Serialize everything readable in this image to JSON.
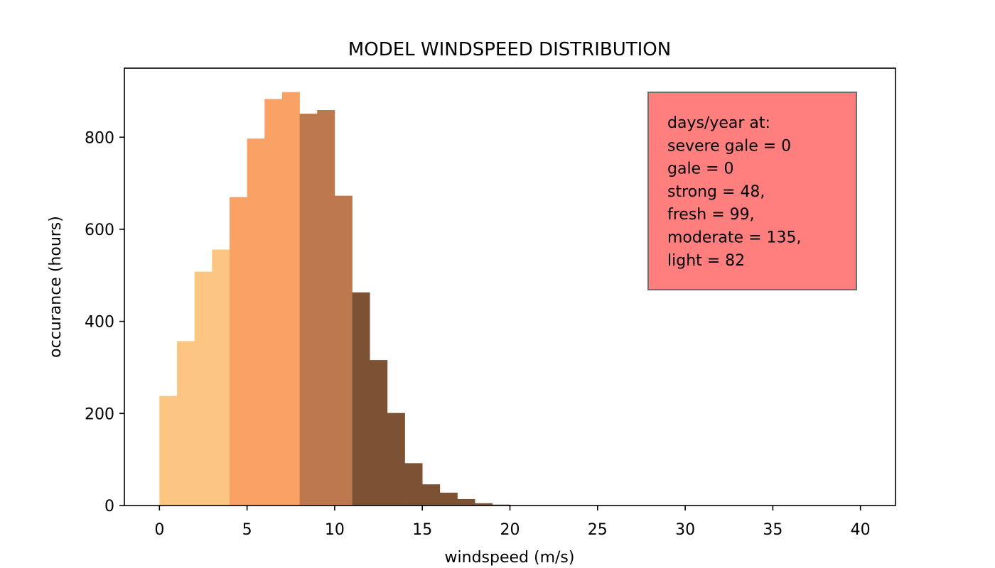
{
  "chart_data": {
    "type": "bar",
    "title": "MODEL WINDSPEED DISTRIBUTION",
    "xlabel": "windspeed (m/s)",
    "ylabel": "occurance (hours)",
    "xlim": [
      -2,
      42
    ],
    "ylim": [
      0,
      950
    ],
    "xticks": [
      0,
      5,
      10,
      15,
      20,
      25,
      30,
      35,
      40
    ],
    "yticks": [
      0,
      200,
      400,
      600,
      800
    ],
    "bin_width": 1,
    "grid": false,
    "legend": "none",
    "series": [
      {
        "color": "#fdc582",
        "bins": [
          {
            "x": 0,
            "value": 238
          },
          {
            "x": 1,
            "value": 357
          },
          {
            "x": 2,
            "value": 508
          },
          {
            "x": 3,
            "value": 556
          }
        ]
      },
      {
        "color": "#faa166",
        "bins": [
          {
            "x": 4,
            "value": 670
          },
          {
            "x": 5,
            "value": 797
          },
          {
            "x": 6,
            "value": 883
          },
          {
            "x": 7,
            "value": 898
          }
        ]
      },
      {
        "color": "#bd794d",
        "bins": [
          {
            "x": 8,
            "value": 851
          },
          {
            "x": 9,
            "value": 859
          },
          {
            "x": 10,
            "value": 673
          }
        ]
      },
      {
        "color": "#7d5133",
        "bins": [
          {
            "x": 11,
            "value": 463
          },
          {
            "x": 12,
            "value": 316
          },
          {
            "x": 13,
            "value": 201
          },
          {
            "x": 14,
            "value": 92
          },
          {
            "x": 15,
            "value": 46
          },
          {
            "x": 16,
            "value": 28
          },
          {
            "x": 17,
            "value": 14
          },
          {
            "x": 18,
            "value": 5
          },
          {
            "x": 19,
            "value": 2
          }
        ]
      }
    ],
    "annotation": {
      "position": "top-right",
      "background": "#ff7f7f",
      "border": "#6e6e6e",
      "lines": [
        "days/year at:",
        "severe gale = 0",
        "gale = 0",
        "strong = 48,",
        "fresh = 99,",
        "moderate = 135,",
        "light = 82"
      ]
    }
  }
}
